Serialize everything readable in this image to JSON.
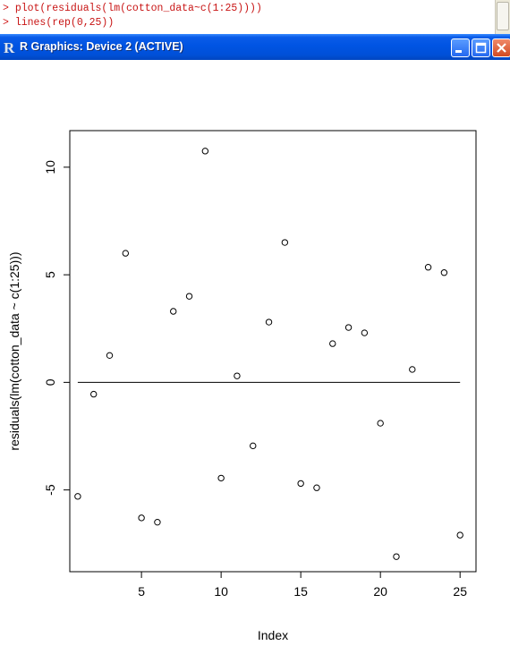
{
  "console": {
    "prompt": ">",
    "lines": [
      "plot(residuals(lm(cotton_data~c(1:25))))",
      "lines(rep(0,25))"
    ]
  },
  "window": {
    "title": "R Graphics: Device 2 (ACTIVE)",
    "icon": "r-logo-icon",
    "titlebar_color": "#0054e3"
  },
  "chart_data": {
    "type": "scatter",
    "title": "",
    "xlabel": "Index",
    "ylabel": "residuals(lm(cotton_data ~ c(1:25)))",
    "xlim": [
      0.5,
      26
    ],
    "ylim": [
      -8.8,
      11.7
    ],
    "xticks": [
      5,
      10,
      15,
      20,
      25
    ],
    "yticks": [
      -5,
      0,
      5,
      10
    ],
    "grid": false,
    "x": [
      1,
      2,
      3,
      4,
      5,
      6,
      7,
      8,
      9,
      10,
      11,
      12,
      13,
      14,
      15,
      16,
      17,
      18,
      19,
      20,
      21,
      22,
      23,
      24,
      25
    ],
    "y": [
      -5.3,
      -0.55,
      1.25,
      6.0,
      -6.3,
      -6.5,
      3.3,
      4.0,
      10.75,
      -4.45,
      0.3,
      -2.95,
      2.8,
      6.5,
      -4.7,
      -4.9,
      1.8,
      2.55,
      2.3,
      -1.9,
      -8.1,
      0.6,
      5.35,
      5.1,
      -7.1
    ],
    "reference_line": {
      "type": "line",
      "x": [
        1,
        25
      ],
      "y": [
        0,
        0
      ]
    }
  }
}
